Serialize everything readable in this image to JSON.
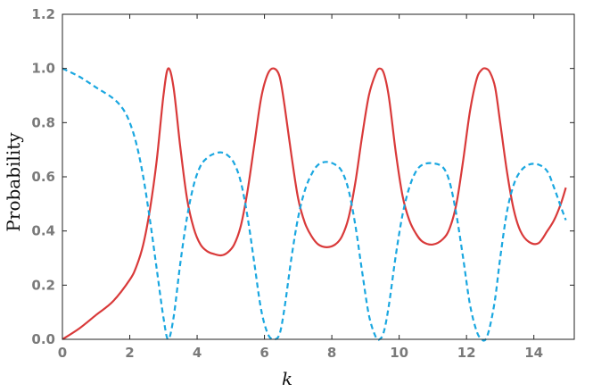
{
  "chart_data": {
    "type": "line",
    "title": "",
    "xlabel": "k",
    "ylabel": "Probability",
    "xlim": [
      0,
      15.2
    ],
    "ylim": [
      0,
      1.2
    ],
    "x_ticks": [
      "0",
      "2",
      "4",
      "6",
      "8",
      "10",
      "12",
      "14"
    ],
    "y_ticks": [
      "0.0",
      "0.2",
      "0.4",
      "0.6",
      "0.8",
      "1.0",
      "1.2"
    ],
    "grid": false,
    "legend": "none",
    "series": [
      {
        "color": "#d93a3a",
        "style": "solid",
        "x": [
          0,
          0.5,
          1.0,
          1.5,
          2.0,
          2.2,
          2.4,
          2.6,
          2.8,
          3.0,
          3.14,
          3.3,
          3.5,
          3.7,
          3.9,
          4.1,
          4.3,
          4.5,
          4.71,
          4.9,
          5.1,
          5.3,
          5.5,
          5.7,
          5.9,
          6.1,
          6.28,
          6.45,
          6.6,
          6.8,
          7.0,
          7.2,
          7.4,
          7.6,
          7.85,
          8.1,
          8.3,
          8.5,
          8.7,
          8.9,
          9.1,
          9.3,
          9.42,
          9.55,
          9.7,
          9.9,
          10.1,
          10.3,
          10.5,
          10.7,
          11.0,
          11.3,
          11.5,
          11.7,
          11.9,
          12.1,
          12.3,
          12.45,
          12.57,
          12.7,
          12.85,
          13.0,
          13.2,
          13.4,
          13.6,
          13.85,
          14.14,
          14.4,
          14.6,
          14.8,
          14.95
        ],
        "y": [
          0.0,
          0.04,
          0.09,
          0.14,
          0.22,
          0.27,
          0.35,
          0.48,
          0.66,
          0.9,
          1.0,
          0.93,
          0.71,
          0.52,
          0.41,
          0.35,
          0.325,
          0.315,
          0.31,
          0.32,
          0.35,
          0.42,
          0.55,
          0.72,
          0.89,
          0.98,
          1.0,
          0.97,
          0.86,
          0.68,
          0.52,
          0.43,
          0.38,
          0.35,
          0.34,
          0.35,
          0.38,
          0.45,
          0.58,
          0.75,
          0.9,
          0.98,
          1.0,
          0.98,
          0.89,
          0.69,
          0.53,
          0.44,
          0.39,
          0.36,
          0.35,
          0.37,
          0.41,
          0.5,
          0.66,
          0.84,
          0.96,
          0.995,
          1.0,
          0.985,
          0.93,
          0.8,
          0.62,
          0.48,
          0.4,
          0.36,
          0.355,
          0.4,
          0.44,
          0.5,
          0.56
        ]
      },
      {
        "color": "#1aa7e0",
        "style": "dashed",
        "x": [
          0,
          0.5,
          1.0,
          1.5,
          1.8,
          2.0,
          2.2,
          2.4,
          2.6,
          2.8,
          3.0,
          3.14,
          3.3,
          3.5,
          3.7,
          3.9,
          4.1,
          4.3,
          4.5,
          4.71,
          4.9,
          5.1,
          5.3,
          5.5,
          5.7,
          5.9,
          6.1,
          6.28,
          6.45,
          6.6,
          6.8,
          7.0,
          7.2,
          7.4,
          7.6,
          7.85,
          8.1,
          8.3,
          8.5,
          8.7,
          8.9,
          9.1,
          9.3,
          9.42,
          9.55,
          9.7,
          9.9,
          10.1,
          10.3,
          10.5,
          10.7,
          11.0,
          11.3,
          11.5,
          11.7,
          11.9,
          12.1,
          12.3,
          12.45,
          12.57,
          12.7,
          12.85,
          13.0,
          13.2,
          13.4,
          13.6,
          13.85,
          14.14,
          14.4,
          14.6,
          14.8,
          14.95
        ],
        "y": [
          1.0,
          0.97,
          0.93,
          0.89,
          0.85,
          0.8,
          0.72,
          0.6,
          0.44,
          0.26,
          0.08,
          0.0,
          0.08,
          0.28,
          0.45,
          0.57,
          0.64,
          0.67,
          0.685,
          0.69,
          0.68,
          0.65,
          0.58,
          0.45,
          0.28,
          0.11,
          0.02,
          0.0,
          0.02,
          0.12,
          0.3,
          0.45,
          0.55,
          0.61,
          0.645,
          0.655,
          0.645,
          0.62,
          0.55,
          0.42,
          0.25,
          0.09,
          0.01,
          0.0,
          0.03,
          0.13,
          0.31,
          0.46,
          0.56,
          0.62,
          0.645,
          0.65,
          0.635,
          0.58,
          0.46,
          0.3,
          0.13,
          0.03,
          0.0,
          0.0,
          0.05,
          0.15,
          0.3,
          0.47,
          0.57,
          0.62,
          0.645,
          0.645,
          0.62,
          0.56,
          0.49,
          0.44
        ]
      }
    ]
  }
}
